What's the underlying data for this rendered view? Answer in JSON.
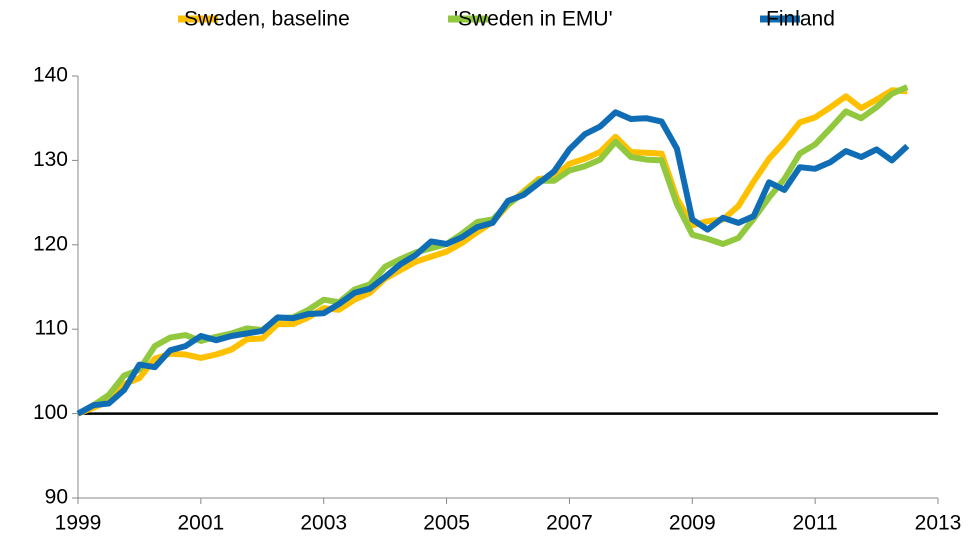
{
  "chart_data": {
    "type": "line",
    "x": [
      1999,
      1999.25,
      1999.5,
      1999.75,
      2000,
      2000.25,
      2000.5,
      2000.75,
      2001,
      2001.25,
      2001.5,
      2001.75,
      2002,
      2002.25,
      2002.5,
      2002.75,
      2003,
      2003.25,
      2003.5,
      2003.75,
      2004,
      2004.25,
      2004.5,
      2004.75,
      2005,
      2005.25,
      2005.5,
      2005.75,
      2006,
      2006.25,
      2006.5,
      2006.75,
      2007,
      2007.25,
      2007.5,
      2007.75,
      2008,
      2008.25,
      2008.5,
      2008.75,
      2009,
      2009.25,
      2009.5,
      2009.75,
      2010,
      2010.25,
      2010.5,
      2010.75,
      2011,
      2011.25,
      2011.5,
      2011.75,
      2012,
      2012.25,
      2012.5
    ],
    "series": [
      {
        "name": "Sweden, baseline",
        "color": "#ffc000",
        "values": [
          100,
          100.7,
          101.5,
          103.5,
          104.2,
          106.5,
          107.1,
          107,
          106.6,
          107,
          107.6,
          108.8,
          108.9,
          110.6,
          110.6,
          111.4,
          112.5,
          112.3,
          113.5,
          114.3,
          116,
          117,
          118,
          118.6,
          119.2,
          120.2,
          121.5,
          122.7,
          124.7,
          126.3,
          127.8,
          128,
          129.6,
          130.2,
          131,
          132.8,
          131,
          130.9,
          130.8,
          125.5,
          122.3,
          122.8,
          123,
          124.6,
          127.5,
          130.2,
          132.2,
          134.5,
          135.1,
          136.3,
          137.6,
          136.2,
          137.2,
          138.3,
          138.2
        ]
      },
      {
        "name": "'Sweden in EMU'",
        "color": "#92c83e",
        "values": [
          100,
          101,
          102.2,
          104.5,
          105.2,
          108,
          109,
          109.3,
          108.6,
          109.1,
          109.5,
          110.1,
          109.9,
          111.3,
          111.4,
          112.3,
          113.5,
          113.2,
          114.7,
          115.3,
          117.4,
          118.3,
          119.1,
          119.6,
          120.1,
          121.3,
          122.7,
          123,
          124.8,
          126.1,
          127.6,
          127.6,
          128.8,
          129.3,
          130.1,
          132.2,
          130.4,
          130.1,
          130,
          124.8,
          121.2,
          120.7,
          120.1,
          120.8,
          123.1,
          125.6,
          127.8,
          130.8,
          131.9,
          133.8,
          135.8,
          135,
          136.3,
          137.9,
          138.7
        ]
      },
      {
        "name": "Finland",
        "color": "#0f6db5",
        "values": [
          100,
          101,
          101.2,
          102.8,
          105.8,
          105.5,
          107.5,
          108,
          109.2,
          108.7,
          109.2,
          109.5,
          109.8,
          111.4,
          111.3,
          111.8,
          111.9,
          113,
          114.3,
          114.8,
          116.2,
          117.7,
          118.8,
          120.4,
          120.1,
          120.9,
          122.1,
          122.6,
          125.2,
          125.9,
          127.3,
          128.7,
          131.3,
          133.1,
          134,
          135.7,
          134.9,
          135,
          134.6,
          131.4,
          123,
          121.8,
          123.2,
          122.6,
          123.4,
          127.4,
          126.5,
          129.2,
          129,
          129.8,
          131.1,
          130.4,
          131.3,
          130,
          131.7
        ]
      }
    ],
    "xlim": [
      1999,
      2013
    ],
    "xticks": [
      1999,
      2001,
      2003,
      2005,
      2007,
      2009,
      2011,
      2013
    ],
    "ylim": [
      90,
      140
    ],
    "yticks": [
      90,
      100,
      110,
      120,
      130,
      140
    ],
    "grid": false,
    "hline": 100,
    "legend": "top"
  }
}
